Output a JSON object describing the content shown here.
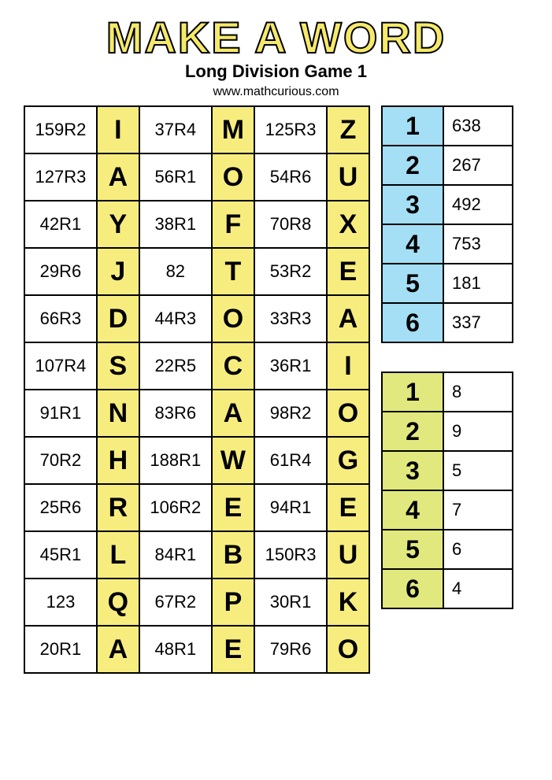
{
  "title": "MAKE A WORD",
  "subtitle": "Long Division Game 1",
  "website": "www.mathcurious.com",
  "colors": {
    "title_fill": "#f5e96b",
    "title_stroke": "#000000",
    "letter_bg": "#f7ed7f",
    "blue_bg": "#a4dff5",
    "green_bg": "#e1e87e",
    "border": "#000000",
    "page_bg": "#ffffff"
  },
  "main_rows": [
    {
      "v1": "159R2",
      "l1": "I",
      "v2": "37R4",
      "l2": "M",
      "v3": "125R3",
      "l3": "Z"
    },
    {
      "v1": "127R3",
      "l1": "A",
      "v2": "56R1",
      "l2": "O",
      "v3": "54R6",
      "l3": "U"
    },
    {
      "v1": "42R1",
      "l1": "Y",
      "v2": "38R1",
      "l2": "F",
      "v3": "70R8",
      "l3": "X"
    },
    {
      "v1": "29R6",
      "l1": "J",
      "v2": "82",
      "l2": "T",
      "v3": "53R2",
      "l3": "E"
    },
    {
      "v1": "66R3",
      "l1": "D",
      "v2": "44R3",
      "l2": "O",
      "v3": "33R3",
      "l3": "A"
    },
    {
      "v1": "107R4",
      "l1": "S",
      "v2": "22R5",
      "l2": "C",
      "v3": "36R1",
      "l3": "I"
    },
    {
      "v1": "91R1",
      "l1": "N",
      "v2": "83R6",
      "l2": "A",
      "v3": "98R2",
      "l3": "O"
    },
    {
      "v1": "70R2",
      "l1": "H",
      "v2": "188R1",
      "l2": "W",
      "v3": "61R4",
      "l3": "G"
    },
    {
      "v1": "25R6",
      "l1": "R",
      "v2": "106R2",
      "l2": "E",
      "v3": "94R1",
      "l3": "E"
    },
    {
      "v1": "45R1",
      "l1": "L",
      "v2": "84R1",
      "l2": "B",
      "v3": "150R3",
      "l3": "U"
    },
    {
      "v1": "123",
      "l1": "Q",
      "v2": "67R2",
      "l2": "P",
      "v3": "30R1",
      "l3": "K"
    },
    {
      "v1": "20R1",
      "l1": "A",
      "v2": "48R1",
      "l2": "E",
      "v3": "79R6",
      "l3": "O"
    }
  ],
  "blue_key": [
    {
      "n": "1",
      "v": "638"
    },
    {
      "n": "2",
      "v": "267"
    },
    {
      "n": "3",
      "v": "492"
    },
    {
      "n": "4",
      "v": "753"
    },
    {
      "n": "5",
      "v": "181"
    },
    {
      "n": "6",
      "v": "337"
    }
  ],
  "green_key": [
    {
      "n": "1",
      "v": "8"
    },
    {
      "n": "2",
      "v": "9"
    },
    {
      "n": "3",
      "v": "5"
    },
    {
      "n": "4",
      "v": "7"
    },
    {
      "n": "5",
      "v": "6"
    },
    {
      "n": "6",
      "v": "4"
    }
  ]
}
